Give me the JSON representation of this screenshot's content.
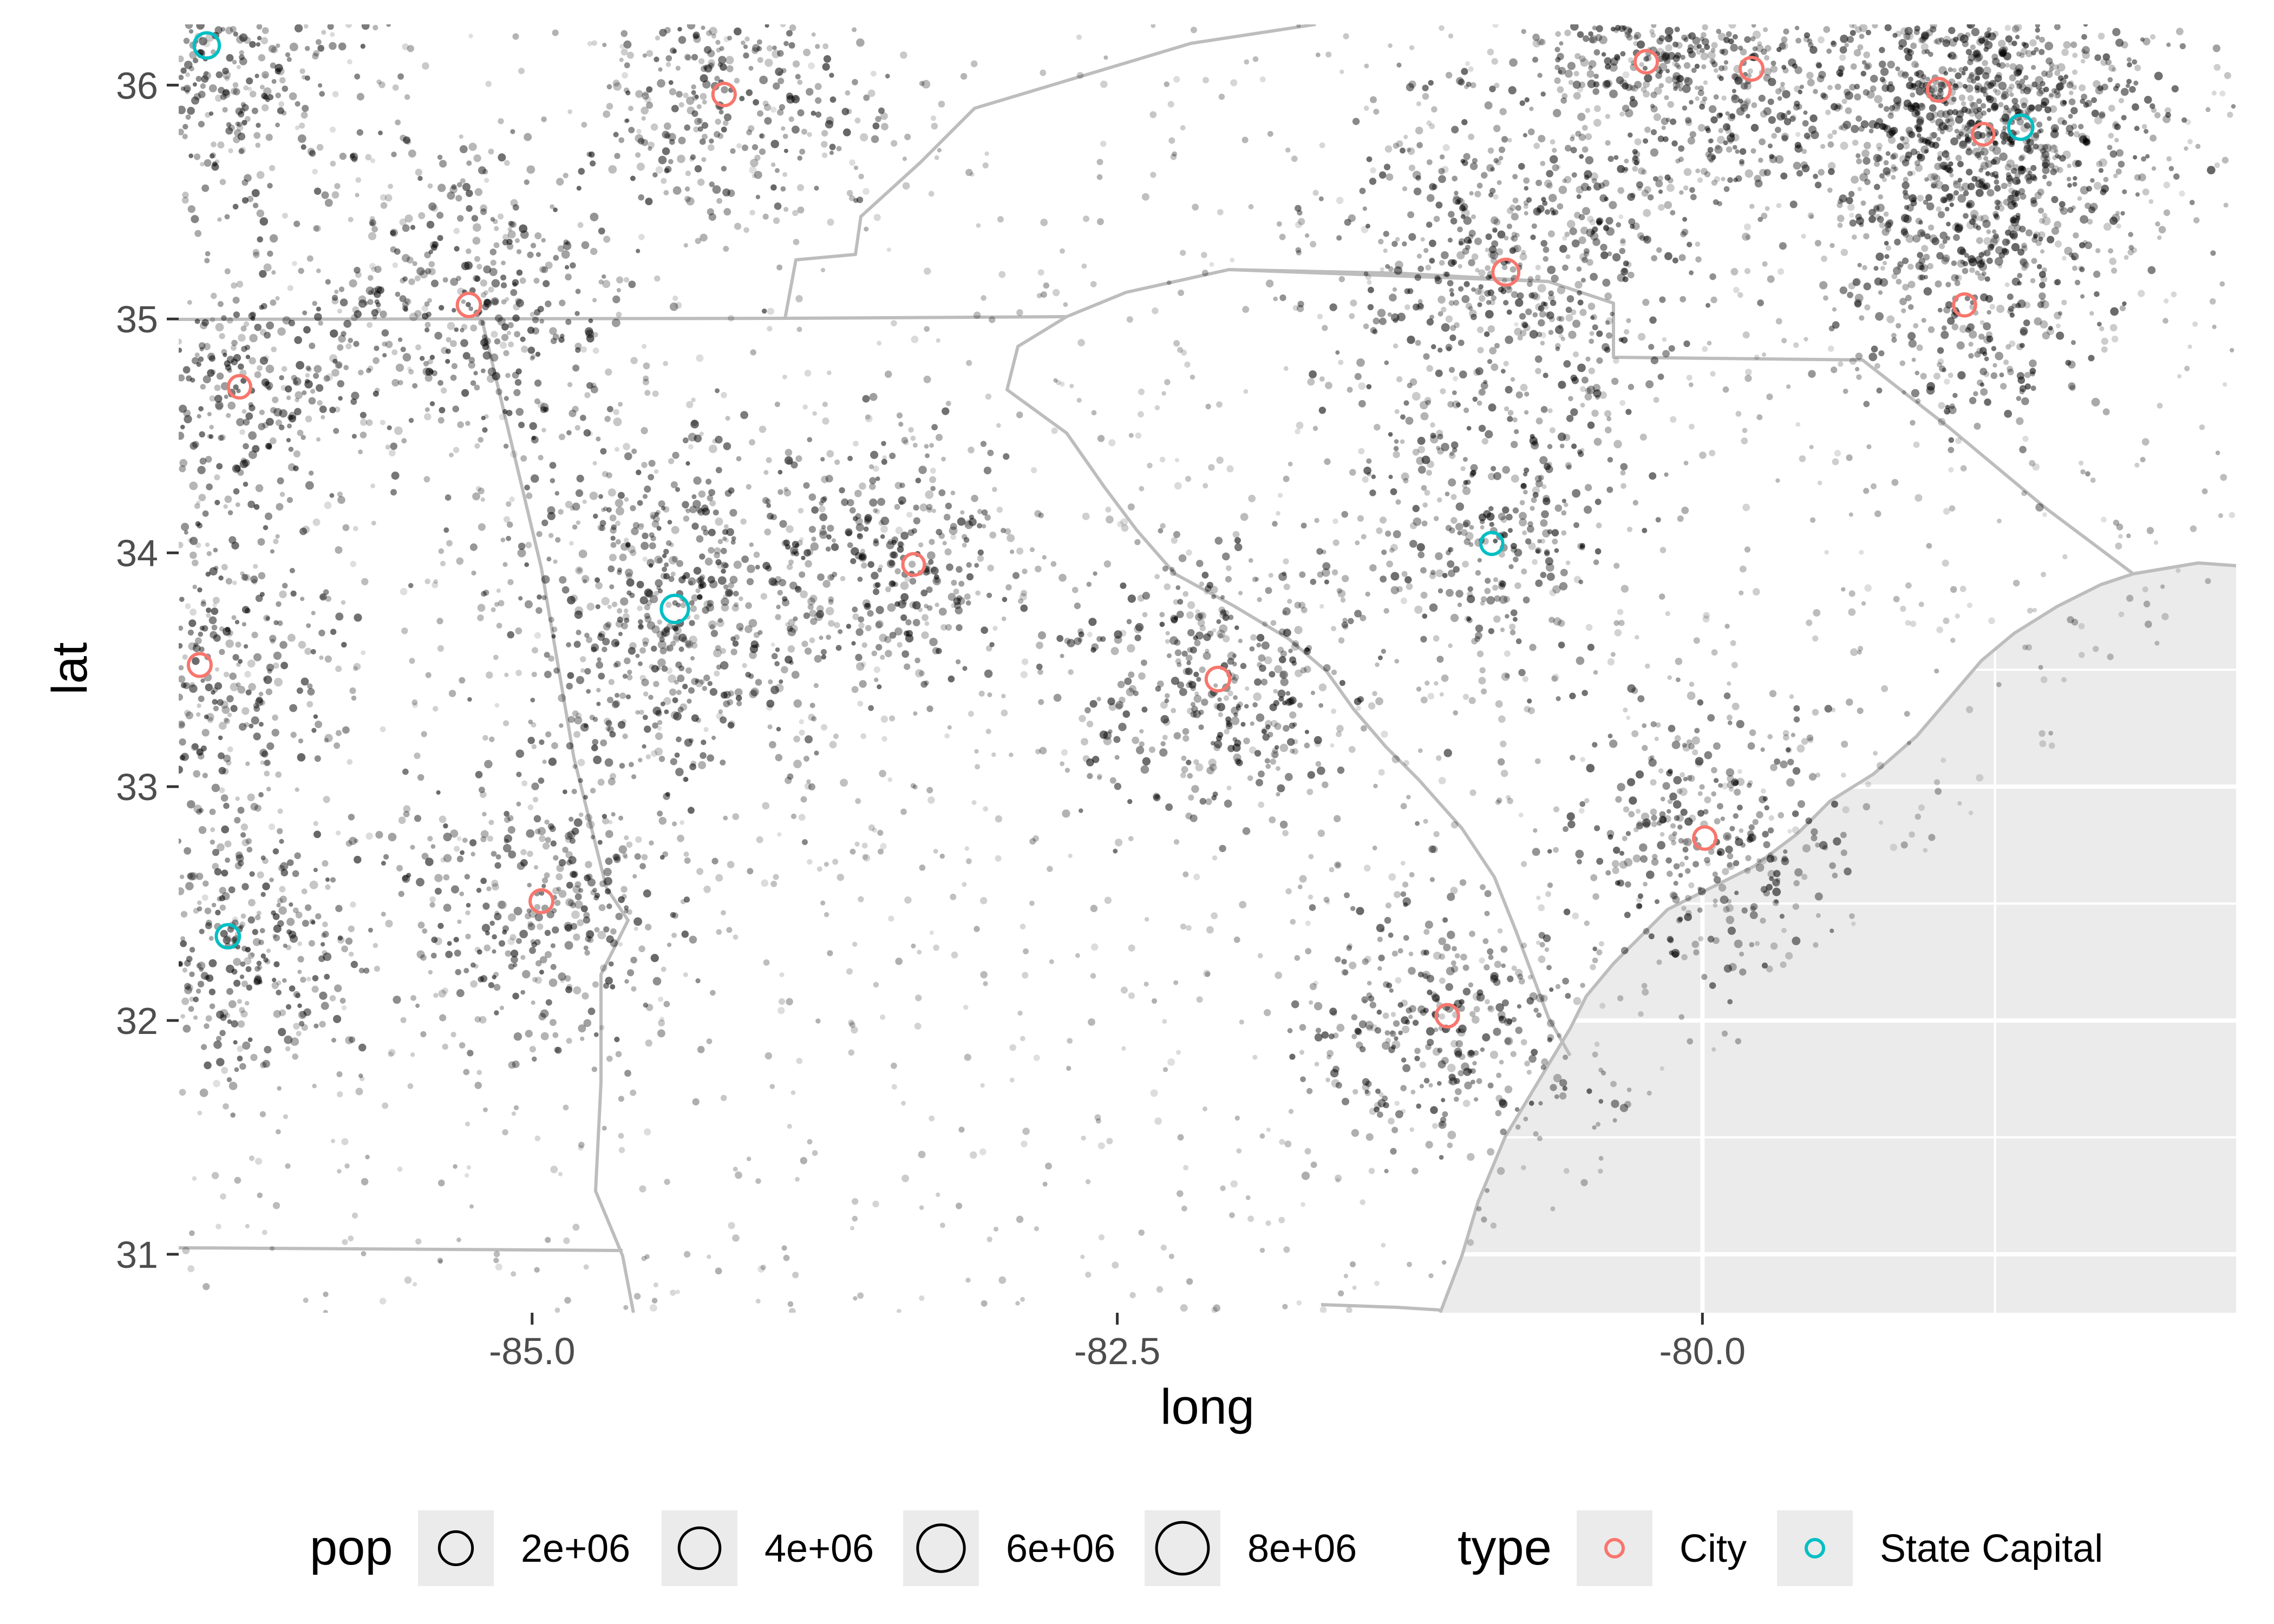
{
  "chart_data": {
    "type": "scatter",
    "xlabel": "long",
    "ylabel": "lat",
    "xlim": [
      -86.51,
      -77.72
    ],
    "ylim": [
      30.75,
      36.26
    ],
    "x_ticks": [
      {
        "value": -85.0,
        "label": "-85.0"
      },
      {
        "value": -82.5,
        "label": "-82.5"
      },
      {
        "value": -80.0,
        "label": "-80.0"
      }
    ],
    "y_ticks": [
      {
        "value": 31,
        "label": "31"
      },
      {
        "value": 32,
        "label": "32"
      },
      {
        "value": 33,
        "label": "33"
      },
      {
        "value": 34,
        "label": "34"
      },
      {
        "value": 35,
        "label": "35"
      },
      {
        "value": 36,
        "label": "36"
      }
    ],
    "panel_background": "#ffffff",
    "ocean_fill": "#ebebeb",
    "grid": true,
    "grid_color": "#ffffff",
    "border_color": "#bdbdbd",
    "point_color": "#000000",
    "legend": {
      "position": "bottom",
      "size_title": "pop",
      "size_entries": [
        {
          "label": "2e+06",
          "value": 2000000
        },
        {
          "label": "4e+06",
          "value": 4000000
        },
        {
          "label": "6e+06",
          "value": 6000000
        },
        {
          "label": "8e+06",
          "value": 8000000
        }
      ],
      "color_title": "type",
      "color_entries": [
        {
          "label": "City",
          "color": "#F8766D"
        },
        {
          "label": "State Capital",
          "color": "#00BFC4"
        }
      ]
    },
    "cities": [
      {
        "type": "City",
        "long": -84.18,
        "lat": 35.96,
        "pop": 1400000
      },
      {
        "type": "City",
        "long": -85.27,
        "lat": 35.06,
        "pop": 1600000
      },
      {
        "type": "City",
        "long": -86.25,
        "lat": 34.71,
        "pop": 1400000
      },
      {
        "type": "City",
        "long": -86.42,
        "lat": 33.52,
        "pop": 1500000
      },
      {
        "type": "City",
        "long": -84.96,
        "lat": 32.51,
        "pop": 1500000
      },
      {
        "type": "City",
        "long": -83.37,
        "lat": 33.95,
        "pop": 1200000
      },
      {
        "type": "City",
        "long": -82.07,
        "lat": 33.46,
        "pop": 1700000
      },
      {
        "type": "City",
        "long": -81.09,
        "lat": 32.02,
        "pop": 1400000
      },
      {
        "type": "City",
        "long": -80.84,
        "lat": 35.2,
        "pop": 2400000
      },
      {
        "type": "City",
        "long": -79.99,
        "lat": 32.78,
        "pop": 1400000
      },
      {
        "type": "City",
        "long": -80.24,
        "lat": 36.1,
        "pop": 1400000
      },
      {
        "type": "City",
        "long": -79.79,
        "lat": 36.07,
        "pop": 1500000
      },
      {
        "type": "City",
        "long": -78.99,
        "lat": 35.98,
        "pop": 1500000
      },
      {
        "type": "City",
        "long": -78.88,
        "lat": 35.06,
        "pop": 1300000
      },
      {
        "type": "City",
        "long": -78.8,
        "lat": 35.79,
        "pop": 1200000
      },
      {
        "type": "State Capital",
        "long": -86.39,
        "lat": 36.17,
        "pop": 2200000
      },
      {
        "type": "State Capital",
        "long": -84.39,
        "lat": 33.76,
        "pop": 2800000
      },
      {
        "type": "State Capital",
        "long": -86.3,
        "lat": 32.36,
        "pop": 1600000
      },
      {
        "type": "State Capital",
        "long": -80.9,
        "lat": 34.04,
        "pop": 1300000
      },
      {
        "type": "State Capital",
        "long": -78.64,
        "lat": 35.82,
        "pop": 1900000
      }
    ]
  }
}
